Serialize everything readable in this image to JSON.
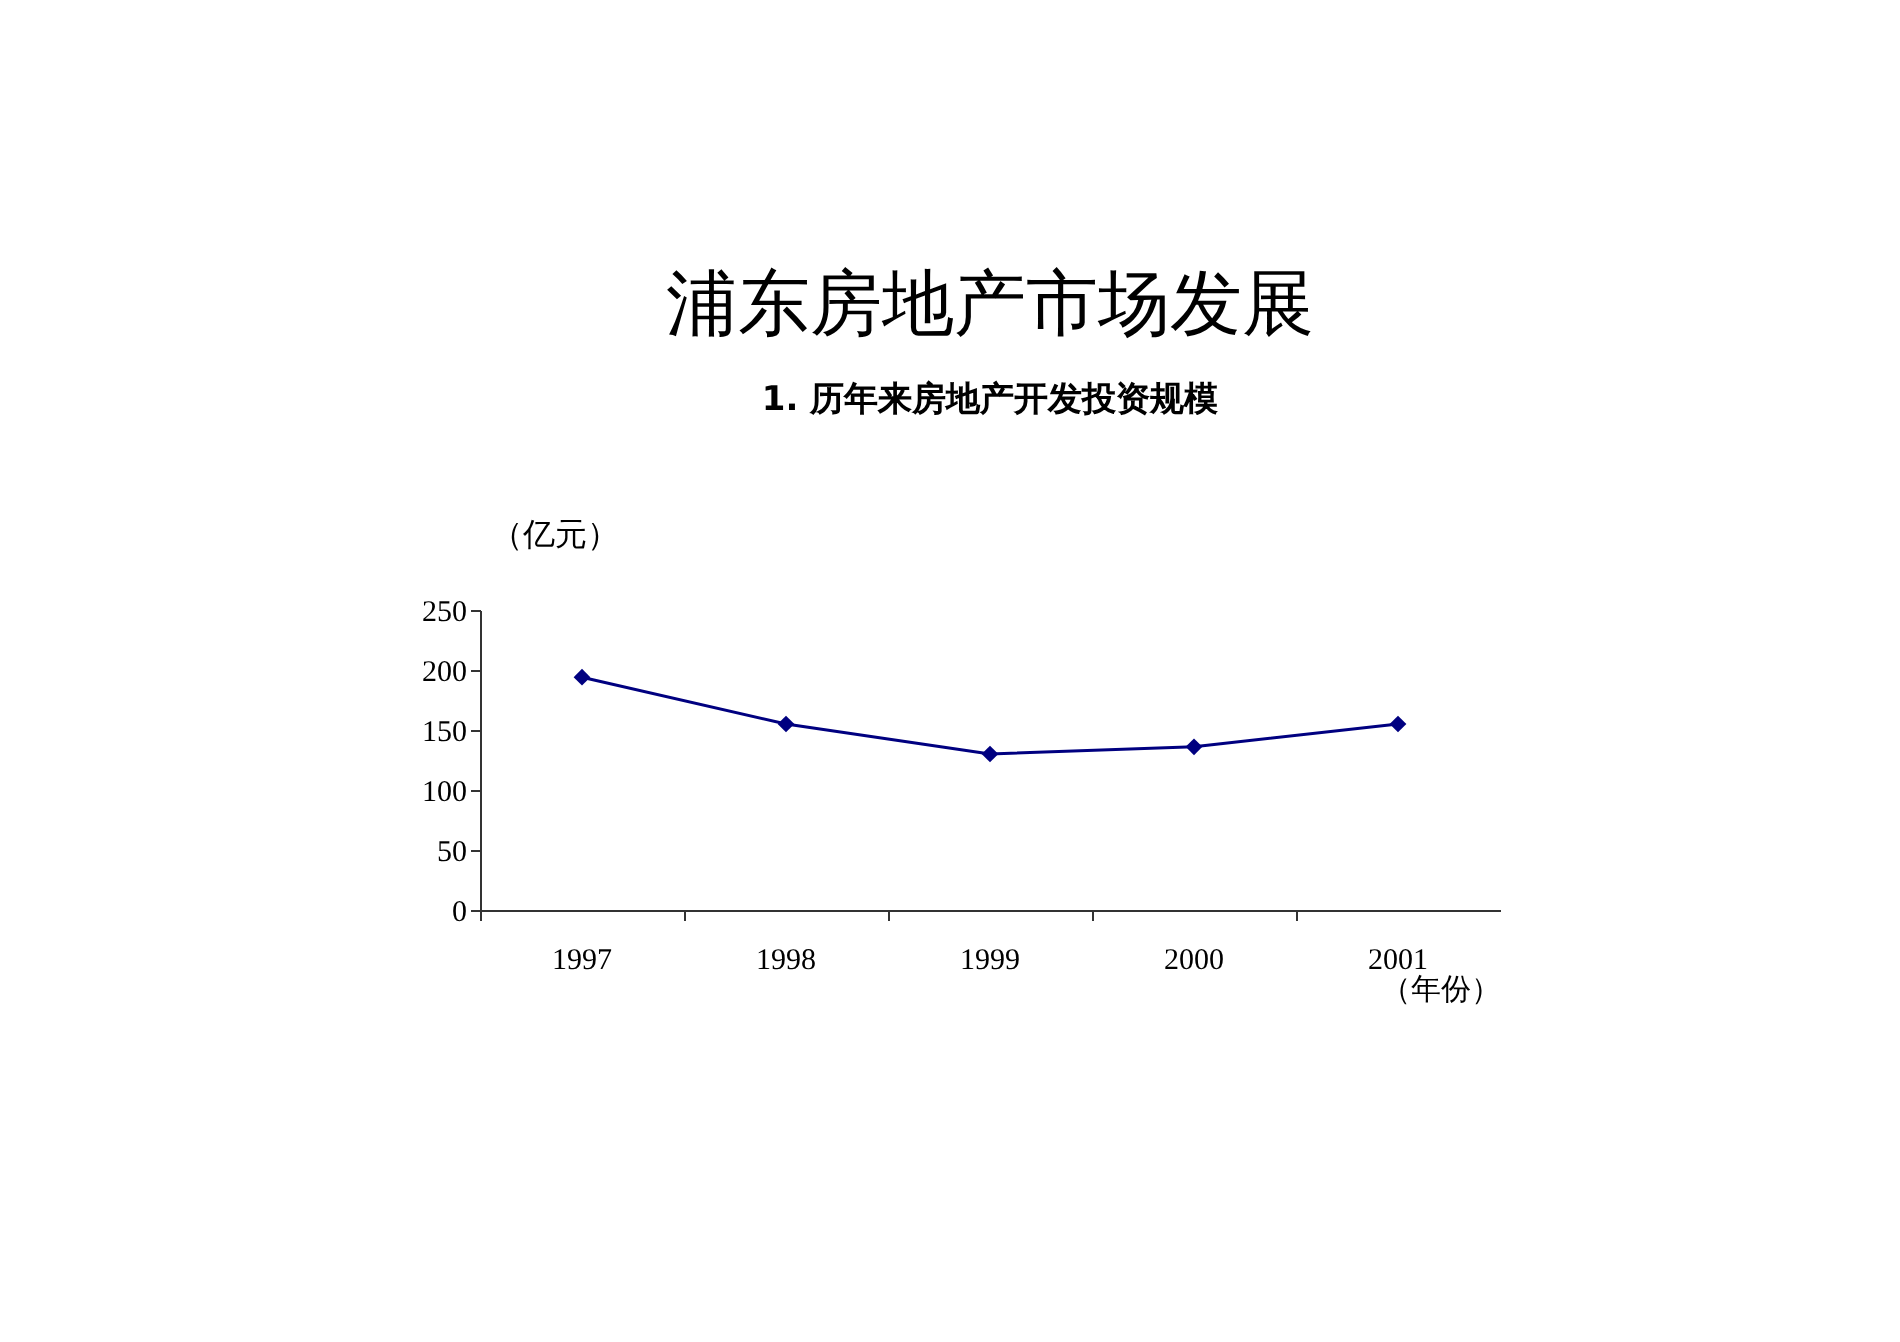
{
  "chart_data": {
    "type": "line",
    "title": "浦东房地产市场发展",
    "subtitle": "1. 历年来房地产开发投资规模",
    "ylabel": "（亿元）",
    "xlabel": "（年份）",
    "categories": [
      "1997",
      "1998",
      "1999",
      "2000",
      "2001"
    ],
    "series": [
      {
        "color": "#000080",
        "values": [
          194,
          155,
          130,
          136,
          155
        ]
      }
    ],
    "ylim": [
      0,
      250
    ],
    "yticks": [
      0,
      50,
      100,
      150,
      200,
      250
    ],
    "grid": false,
    "marker": "diamond",
    "line_style": "solid"
  }
}
